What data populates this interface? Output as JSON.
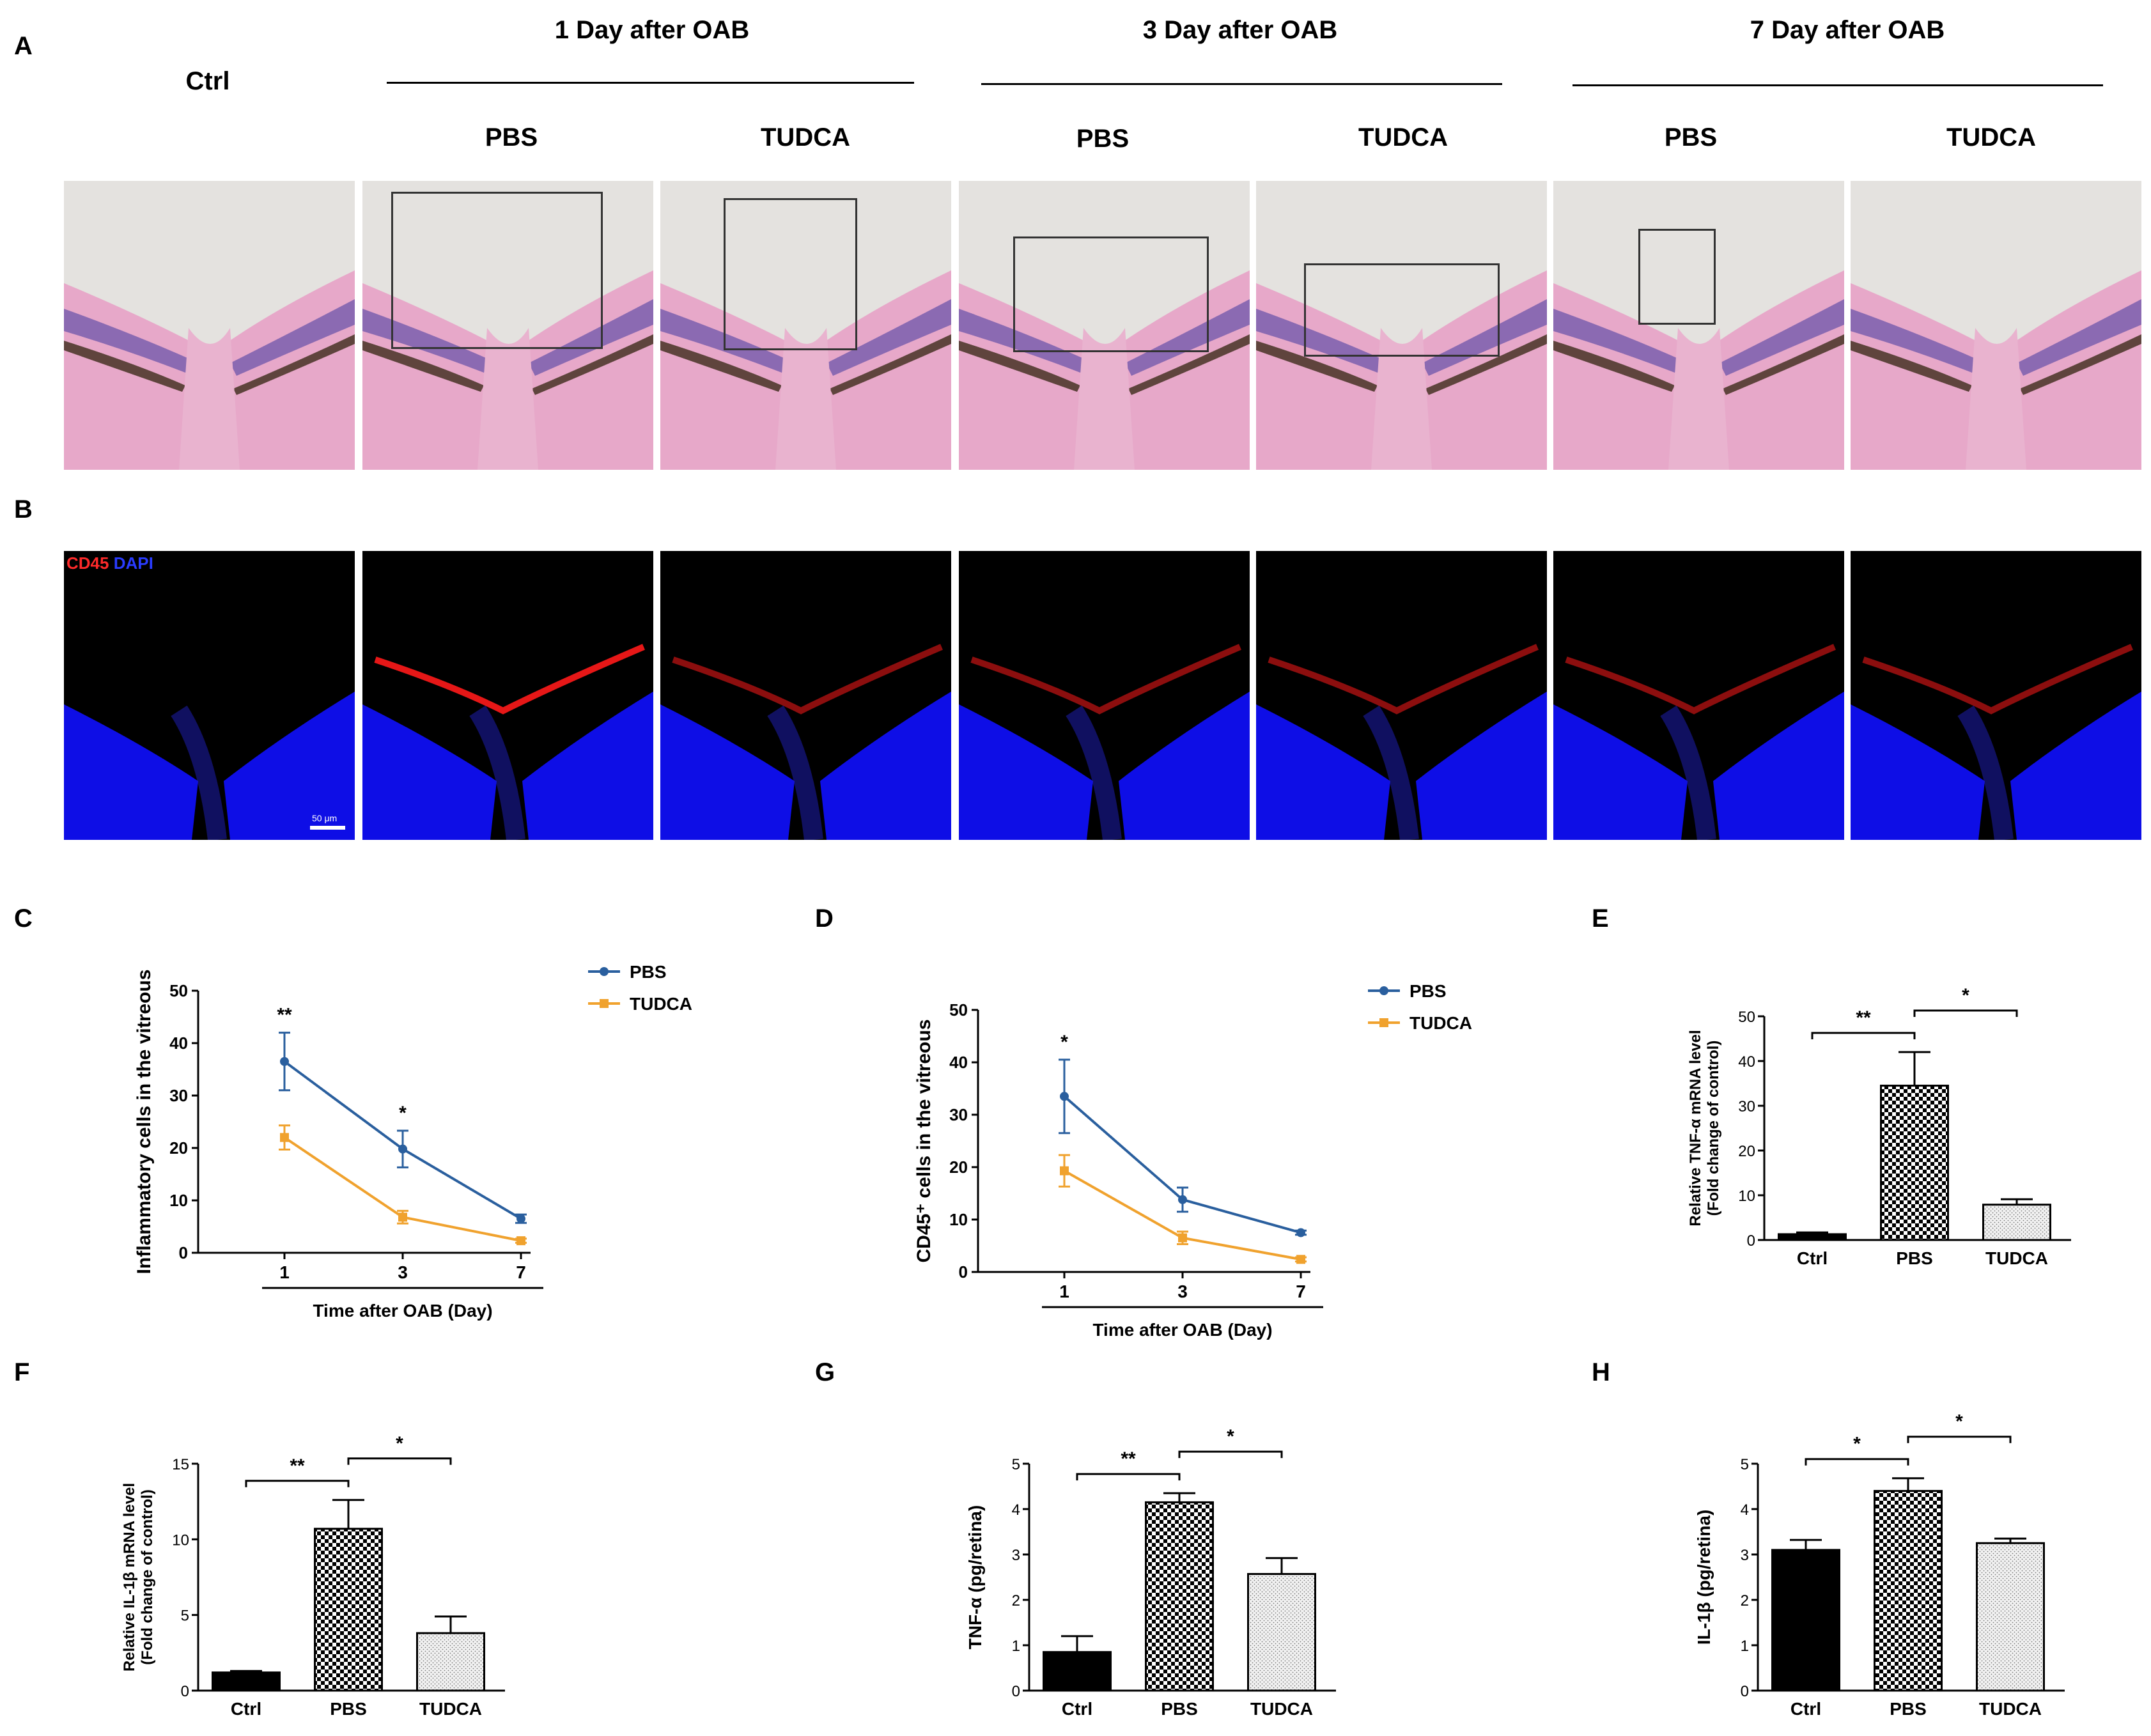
{
  "figure": {
    "panel_letters": [
      "A",
      "B",
      "C",
      "D",
      "E",
      "F",
      "G",
      "H"
    ],
    "group_headers": [
      "1 Day after OAB",
      "3 Day after OAB",
      "7 Day after OAB"
    ],
    "ctrl_label": "Ctrl",
    "sub_labels": [
      "PBS",
      "TUDCA",
      "PBS",
      "TUDCA",
      "PBS",
      "TUDCA"
    ],
    "fluor_label_red": "CD45",
    "fluor_label_blue": "DAPI",
    "scale_bar_text": "50 μm",
    "colors": {
      "pbs": "#2a5f9e",
      "tudca": "#f0a22e",
      "he_pink": "#e7a8c9",
      "he_purple": "#7a5fae",
      "nuclei": "#1010ff",
      "cd45": "#ff1a1a"
    }
  },
  "chart_data": [
    {
      "id": "C",
      "type": "line",
      "title": "",
      "xlabel": "Time after OAB (Day)",
      "ylabel": "Inflammatory cells in the vitreous",
      "x": [
        1,
        3,
        7
      ],
      "ylim": [
        0,
        50
      ],
      "yticks": [
        0,
        10,
        20,
        30,
        40,
        50
      ],
      "series": [
        {
          "name": "PBS",
          "color": "#2a5f9e",
          "values": [
            36.5,
            19.8,
            6.5
          ],
          "errors": [
            5.5,
            3.5,
            0.8
          ]
        },
        {
          "name": "TUDCA",
          "color": "#f0a22e",
          "values": [
            22.0,
            6.8,
            2.3
          ],
          "errors": [
            2.3,
            1.2,
            0.4
          ]
        }
      ],
      "annotations": [
        "**",
        "*"
      ],
      "legend": "top-right"
    },
    {
      "id": "D",
      "type": "line",
      "title": "",
      "xlabel": "Time after OAB (Day)",
      "ylabel": "CD45⁺ cells in the vitreous",
      "x": [
        1,
        3,
        7
      ],
      "ylim": [
        0,
        50
      ],
      "yticks": [
        0,
        10,
        20,
        30,
        40,
        50
      ],
      "series": [
        {
          "name": "PBS",
          "color": "#2a5f9e",
          "values": [
            33.5,
            13.8,
            7.5
          ],
          "errors": [
            7.0,
            2.3,
            0.4
          ]
        },
        {
          "name": "TUDCA",
          "color": "#f0a22e",
          "values": [
            19.3,
            6.5,
            2.4
          ],
          "errors": [
            3.0,
            1.2,
            0.4
          ]
        }
      ],
      "annotations": [
        "*"
      ],
      "legend": "top-right"
    },
    {
      "id": "E",
      "type": "bar",
      "title": "",
      "ylabel_line1": "Relative TNF-α mRNA level",
      "ylabel_line2": "(Fold change of control)",
      "categories": [
        "Ctrl",
        "PBS",
        "TUDCA"
      ],
      "values": [
        1.3,
        34.5,
        7.9
      ],
      "errors": [
        0.4,
        7.5,
        1.2
      ],
      "ylim": [
        0,
        50
      ],
      "yticks": [
        0,
        10,
        20,
        30,
        40,
        50
      ],
      "sig_labels": [
        "**",
        "*"
      ]
    },
    {
      "id": "F",
      "type": "bar",
      "title": "",
      "ylabel_line1": "Relative IL-1β mRNA level",
      "ylabel_line2": "(Fold change of control)",
      "categories": [
        "Ctrl",
        "PBS",
        "TUDCA"
      ],
      "values": [
        1.2,
        10.7,
        3.8
      ],
      "errors": [
        0.1,
        1.9,
        1.1
      ],
      "ylim": [
        0,
        15
      ],
      "yticks": [
        0,
        5,
        10,
        15
      ],
      "sig_labels": [
        "**",
        "*"
      ]
    },
    {
      "id": "G",
      "type": "bar",
      "title": "",
      "ylabel_line1": "TNF-α (pg/retina)",
      "ylabel_line2": "",
      "categories": [
        "Ctrl",
        "PBS",
        "TUDCA"
      ],
      "values": [
        0.85,
        4.15,
        2.57
      ],
      "errors": [
        0.35,
        0.2,
        0.35
      ],
      "ylim": [
        0,
        5
      ],
      "yticks": [
        0,
        1,
        2,
        3,
        4,
        5
      ],
      "sig_labels": [
        "**",
        "*"
      ]
    },
    {
      "id": "H",
      "type": "bar",
      "title": "",
      "ylabel_line1": "IL-1β  (pg/retina)",
      "ylabel_line2": "",
      "categories": [
        "Ctrl",
        "PBS",
        "TUDCA"
      ],
      "values": [
        3.1,
        4.4,
        3.25
      ],
      "errors": [
        0.22,
        0.28,
        0.1
      ],
      "ylim": [
        0,
        5
      ],
      "yticks": [
        0,
        1,
        2,
        3,
        4,
        5
      ],
      "sig_labels": [
        "*",
        "*"
      ]
    }
  ]
}
